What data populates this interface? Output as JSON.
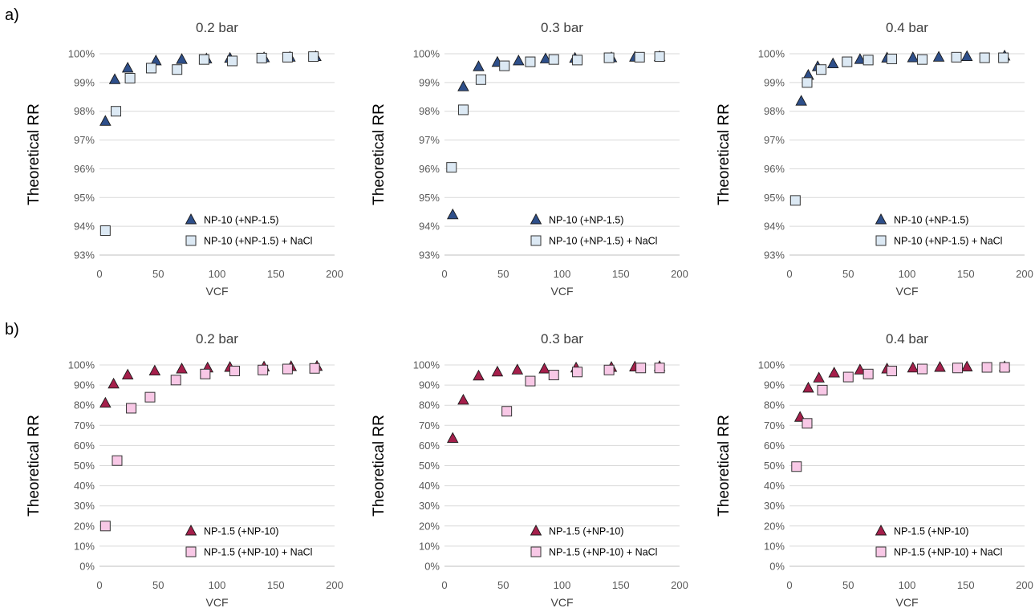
{
  "row_labels": [
    "a)",
    "b)"
  ],
  "colors": {
    "triangle_blue": "#2e4f8a",
    "square_lightblue": "#dce9f4",
    "triangle_red": "#a51f4b",
    "square_pink": "#f8c8e6",
    "grid": "#d9d9d9"
  },
  "chart_data": [
    {
      "type": "scatter",
      "title": "0.2 bar",
      "xlabel": "VCF",
      "ylabel": "Theoretical RR",
      "xlim": [
        0,
        200
      ],
      "xticks": [
        "0",
        "50",
        "100",
        "150",
        "200"
      ],
      "ylim": [
        93,
        100
      ],
      "yticks": [
        "93%",
        "94%",
        "95%",
        "96%",
        "97%",
        "98%",
        "99%",
        "100%"
      ],
      "grid": "horizontal",
      "legend": "bottom-right",
      "series": [
        {
          "name": "NP-10 (+NP-1.5)",
          "marker": "triangle",
          "color": "#2e4f8a",
          "x": [
            5,
            13,
            24,
            48,
            70,
            91,
            111,
            140,
            162,
            184
          ],
          "y": [
            97.65,
            99.1,
            99.5,
            99.75,
            99.8,
            99.82,
            99.84,
            99.86,
            99.88,
            99.9
          ]
        },
        {
          "name": "NP-10 (+NP-1.5) + NaCl",
          "marker": "square",
          "color": "#dce9f4",
          "x": [
            5,
            14,
            26,
            44,
            66,
            89,
            113,
            138,
            160,
            182
          ],
          "y": [
            93.85,
            98.0,
            99.15,
            99.5,
            99.45,
            99.8,
            99.75,
            99.85,
            99.88,
            99.9
          ]
        }
      ]
    },
    {
      "type": "scatter",
      "title": "0.3 bar",
      "xlabel": "VCF",
      "ylabel": "Theoretical RR",
      "xlim": [
        0,
        200
      ],
      "xticks": [
        "0",
        "50",
        "100",
        "150",
        "200"
      ],
      "ylim": [
        93,
        100
      ],
      "yticks": [
        "93%",
        "94%",
        "95%",
        "96%",
        "97%",
        "98%",
        "99%",
        "100%"
      ],
      "grid": "horizontal",
      "legend": "bottom-right",
      "series": [
        {
          "name": "NP-10 (+NP-1.5)",
          "marker": "triangle",
          "color": "#2e4f8a",
          "x": [
            7,
            16,
            29,
            45,
            63,
            86,
            111,
            142,
            162,
            183
          ],
          "y": [
            94.4,
            98.85,
            99.55,
            99.7,
            99.75,
            99.82,
            99.84,
            99.86,
            99.88,
            99.9
          ]
        },
        {
          "name": "NP-10 (+NP-1.5) + NaCl",
          "marker": "square",
          "color": "#dce9f4",
          "x": [
            6,
            16,
            31,
            51,
            73,
            93,
            113,
            140,
            166,
            183
          ],
          "y": [
            96.05,
            98.05,
            99.1,
            99.58,
            99.72,
            99.8,
            99.78,
            99.86,
            99.88,
            99.9
          ]
        }
      ]
    },
    {
      "type": "scatter",
      "title": "0.4 bar",
      "xlabel": "VCF",
      "ylabel": "Theoretical RR",
      "xlim": [
        0,
        200
      ],
      "xticks": [
        "0",
        "50",
        "100",
        "150",
        "200"
      ],
      "ylim": [
        93,
        100
      ],
      "yticks": [
        "93%",
        "94%",
        "95%",
        "96%",
        "97%",
        "98%",
        "99%",
        "100%"
      ],
      "grid": "horizontal",
      "legend": "bottom-right",
      "series": [
        {
          "name": "NP-10 (+NP-1.5)",
          "marker": "triangle",
          "color": "#2e4f8a",
          "x": [
            10,
            16,
            24,
            37,
            60,
            83,
            105,
            127,
            151,
            183
          ],
          "y": [
            98.35,
            99.25,
            99.55,
            99.65,
            99.8,
            99.85,
            99.86,
            99.88,
            99.9,
            99.92
          ]
        },
        {
          "name": "NP-10 (+NP-1.5) + NaCl",
          "marker": "square",
          "color": "#dce9f4",
          "x": [
            5,
            15,
            27,
            49,
            67,
            87,
            113,
            142,
            166,
            182
          ],
          "y": [
            94.9,
            99.0,
            99.45,
            99.72,
            99.78,
            99.82,
            99.8,
            99.88,
            99.86,
            99.86
          ]
        }
      ]
    },
    {
      "type": "scatter",
      "title": "0.2 bar",
      "xlabel": "VCF",
      "ylabel": "Theoretical RR",
      "xlim": [
        0,
        200
      ],
      "xticks": [
        "0",
        "50",
        "100",
        "150",
        "200"
      ],
      "ylim": [
        0,
        100
      ],
      "yticks": [
        "0%",
        "10%",
        "20%",
        "30%",
        "40%",
        "50%",
        "60%",
        "70%",
        "80%",
        "90%",
        "100%"
      ],
      "grid": "horizontal",
      "legend": "bottom-right",
      "series": [
        {
          "name": "NP-1.5 (+NP-10)",
          "marker": "triangle",
          "color": "#a51f4b",
          "x": [
            5,
            12,
            24,
            47,
            70,
            92,
            111,
            140,
            163,
            185
          ],
          "y": [
            81,
            90.5,
            95,
            97,
            98,
            98.5,
            98.8,
            99,
            99.2,
            99.3
          ]
        },
        {
          "name": "NP-1.5 (+NP-10) + NaCl",
          "marker": "square",
          "color": "#f8c8e6",
          "x": [
            5,
            15,
            27,
            43,
            65,
            90,
            115,
            139,
            160,
            183
          ],
          "y": [
            20,
            52.5,
            78.5,
            84,
            92.5,
            95.5,
            97,
            97.5,
            98,
            98.3
          ]
        }
      ]
    },
    {
      "type": "scatter",
      "title": "0.3 bar",
      "xlabel": "VCF",
      "ylabel": "Theoretical RR",
      "xlim": [
        0,
        200
      ],
      "xticks": [
        "0",
        "50",
        "100",
        "150",
        "200"
      ],
      "ylim": [
        0,
        100
      ],
      "yticks": [
        "0%",
        "10%",
        "20%",
        "30%",
        "40%",
        "50%",
        "60%",
        "70%",
        "80%",
        "90%",
        "100%"
      ],
      "grid": "horizontal",
      "legend": "bottom-right",
      "series": [
        {
          "name": "NP-1.5 (+NP-10)",
          "marker": "triangle",
          "color": "#a51f4b",
          "x": [
            7,
            16,
            29,
            45,
            62,
            85,
            112,
            142,
            162,
            183
          ],
          "y": [
            63.5,
            82.5,
            94.5,
            96.5,
            97.5,
            98,
            98.5,
            98.8,
            99,
            99.2
          ]
        },
        {
          "name": "NP-1.5 (+NP-10) + NaCl",
          "marker": "square",
          "color": "#f8c8e6",
          "x": [
            53,
            73,
            93,
            113,
            140,
            167,
            183
          ],
          "y": [
            77,
            92,
            95,
            96.5,
            97.5,
            98.5,
            98.5
          ]
        }
      ]
    },
    {
      "type": "scatter",
      "title": "0.4 bar",
      "xlabel": "VCF",
      "ylabel": "Theoretical RR",
      "xlim": [
        0,
        200
      ],
      "xticks": [
        "0",
        "50",
        "100",
        "150",
        "200"
      ],
      "ylim": [
        0,
        100
      ],
      "yticks": [
        "0%",
        "10%",
        "20%",
        "30%",
        "40%",
        "50%",
        "60%",
        "70%",
        "80%",
        "90%",
        "100%"
      ],
      "grid": "horizontal",
      "legend": "bottom-right",
      "series": [
        {
          "name": "NP-1.5 (+NP-10)",
          "marker": "triangle",
          "color": "#a51f4b",
          "x": [
            9,
            16,
            25,
            38,
            60,
            83,
            105,
            128,
            151,
            183
          ],
          "y": [
            74,
            88.5,
            93.5,
            96,
            97.5,
            98,
            98.5,
            98.8,
            99,
            99.1
          ]
        },
        {
          "name": "NP-1.5 (+NP-10) + NaCl",
          "marker": "square",
          "color": "#f8c8e6",
          "x": [
            6,
            15,
            28,
            50,
            67,
            87,
            113,
            143,
            168,
            183
          ],
          "y": [
            49.5,
            71,
            87.5,
            94,
            95.5,
            97,
            98,
            98.5,
            98.8,
            98.8
          ]
        }
      ]
    }
  ]
}
